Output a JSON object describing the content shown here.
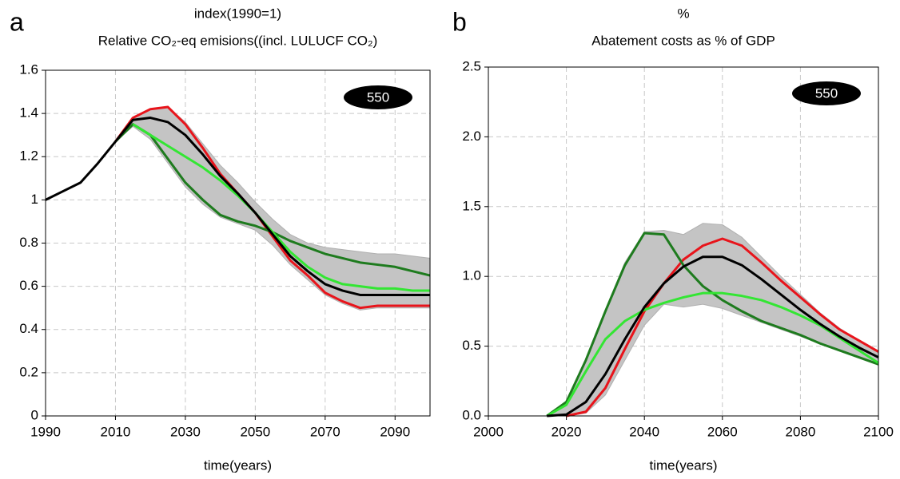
{
  "chart_data": [
    {
      "type": "line",
      "panel_label": "a",
      "title": "index(1990=1)",
      "subtitle": "Relative CO₂-eq emisions((incl. LULUCF CO₂)",
      "badge": "550",
      "xlabel": "time(years)",
      "x": [
        1990,
        1995,
        2000,
        2005,
        2010,
        2015,
        2020,
        2025,
        2030,
        2035,
        2040,
        2045,
        2050,
        2055,
        2060,
        2065,
        2070,
        2075,
        2080,
        2085,
        2090,
        2095,
        2100
      ],
      "xlim": [
        1990,
        2100
      ],
      "xticks": [
        1990,
        2010,
        2030,
        2050,
        2070,
        2090
      ],
      "ylim": [
        0,
        1.6
      ],
      "yticks": [
        0,
        0.2,
        0.4,
        0.6,
        0.8,
        1,
        1.2,
        1.4,
        1.6
      ],
      "grid": true,
      "band": {
        "color": "#c4c4c4",
        "upper": [
          null,
          null,
          null,
          null,
          1.27,
          1.38,
          1.42,
          1.43,
          1.36,
          1.26,
          1.16,
          1.08,
          0.99,
          0.91,
          0.84,
          0.8,
          0.78,
          0.77,
          0.76,
          0.75,
          0.75,
          0.74,
          0.73
        ],
        "lower": [
          null,
          null,
          null,
          null,
          1.27,
          1.34,
          1.28,
          1.17,
          1.06,
          0.98,
          0.92,
          0.89,
          0.86,
          0.79,
          0.7,
          0.63,
          0.56,
          0.52,
          0.49,
          0.5,
          0.5,
          0.5,
          0.5
        ]
      },
      "series": [
        {
          "color": "#e8141b",
          "values": [
            null,
            null,
            null,
            null,
            1.27,
            1.38,
            1.42,
            1.43,
            1.35,
            1.24,
            1.12,
            1.03,
            0.94,
            0.83,
            0.72,
            0.65,
            0.57,
            0.53,
            0.5,
            0.51,
            0.51,
            0.51,
            0.51
          ]
        },
        {
          "color": "#1e7b1e",
          "values": [
            null,
            null,
            null,
            null,
            1.27,
            1.35,
            1.3,
            1.19,
            1.08,
            1.0,
            0.93,
            0.9,
            0.88,
            0.85,
            0.81,
            0.78,
            0.75,
            0.73,
            0.71,
            0.7,
            0.69,
            0.67,
            0.65
          ]
        },
        {
          "color": "#33e633",
          "values": [
            null,
            null,
            null,
            null,
            null,
            1.35,
            1.3,
            1.25,
            1.2,
            1.15,
            1.09,
            1.02,
            0.94,
            0.85,
            0.76,
            0.69,
            0.64,
            0.61,
            0.6,
            0.59,
            0.59,
            0.58,
            0.58
          ]
        },
        {
          "color": "#000000",
          "values": [
            1.0,
            1.04,
            1.08,
            1.17,
            1.27,
            1.37,
            1.38,
            1.36,
            1.3,
            1.21,
            1.11,
            1.03,
            0.94,
            0.84,
            0.74,
            0.67,
            0.61,
            0.58,
            0.56,
            0.56,
            0.56,
            0.56,
            0.56
          ]
        }
      ]
    },
    {
      "type": "line",
      "panel_label": "b",
      "title": "%",
      "subtitle": "Abatement costs as % of GDP",
      "badge": "550",
      "xlabel": "time(years)",
      "x": [
        2015,
        2020,
        2025,
        2030,
        2035,
        2040,
        2045,
        2050,
        2055,
        2060,
        2065,
        2070,
        2075,
        2080,
        2085,
        2090,
        2095,
        2100
      ],
      "xlim": [
        2000,
        2100
      ],
      "xticks": [
        2000,
        2020,
        2040,
        2060,
        2080,
        2100
      ],
      "ylim": [
        0,
        2.5
      ],
      "yticks": [
        {
          "value": 0,
          "label": "0.0"
        },
        0.5,
        {
          "value": 1,
          "label": "1.0"
        },
        1.5,
        {
          "value": 2,
          "label": "2.0"
        },
        2.5
      ],
      "grid": true,
      "band": {
        "color": "#c4c4c4",
        "upper": [
          0,
          0.1,
          0.4,
          0.76,
          1.1,
          1.32,
          1.33,
          1.3,
          1.38,
          1.37,
          1.28,
          1.14,
          1.0,
          0.87,
          0.74,
          0.63,
          0.54,
          0.46
        ],
        "lower": [
          0,
          0,
          0.02,
          0.15,
          0.4,
          0.65,
          0.8,
          0.78,
          0.8,
          0.77,
          0.72,
          0.67,
          0.62,
          0.57,
          0.52,
          0.47,
          0.42,
          0.37
        ]
      },
      "series": [
        {
          "color": "#e8141b",
          "values": [
            null,
            0,
            0.03,
            0.2,
            0.48,
            0.75,
            0.95,
            1.12,
            1.22,
            1.27,
            1.22,
            1.1,
            0.97,
            0.85,
            0.73,
            0.62,
            0.54,
            0.46
          ]
        },
        {
          "color": "#1e7b1e",
          "values": [
            0,
            0.1,
            0.4,
            0.75,
            1.08,
            1.31,
            1.3,
            1.08,
            0.93,
            0.83,
            0.75,
            0.68,
            0.63,
            0.58,
            0.52,
            0.47,
            0.42,
            0.37
          ]
        },
        {
          "color": "#33e633",
          "values": [
            0,
            0.08,
            0.32,
            0.55,
            0.68,
            0.76,
            0.81,
            0.85,
            0.88,
            0.88,
            0.86,
            0.83,
            0.78,
            0.72,
            0.65,
            0.56,
            0.47,
            0.38
          ]
        },
        {
          "color": "#000000",
          "values": [
            0,
            0.01,
            0.1,
            0.3,
            0.55,
            0.78,
            0.95,
            1.07,
            1.14,
            1.14,
            1.08,
            0.98,
            0.87,
            0.76,
            0.66,
            0.57,
            0.49,
            0.42
          ]
        }
      ]
    }
  ]
}
